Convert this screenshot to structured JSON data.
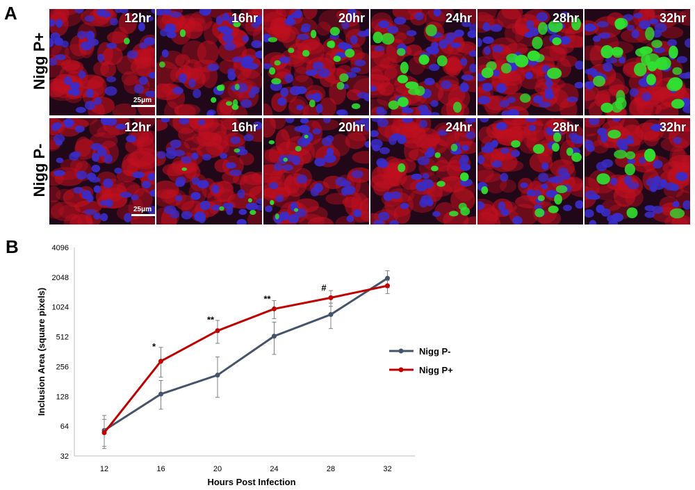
{
  "panel_a": {
    "letter": "A",
    "rows": [
      {
        "label": "Nigg P+",
        "times": [
          "12hr",
          "16hr",
          "20hr",
          "24hr",
          "28hr",
          "32hr"
        ],
        "scale_bar": "25μm"
      },
      {
        "label": "Nigg P-",
        "times": [
          "12hr",
          "16hr",
          "20hr",
          "24hr",
          "28hr",
          "32hr"
        ],
        "scale_bar": "25μm"
      }
    ],
    "colors": {
      "nucleus": "#3a2cc8",
      "cytoplasm": "#c01020",
      "inclusion": "#30e030",
      "background": "#200818"
    }
  },
  "panel_b": {
    "letter": "B"
  },
  "chart_data": {
    "type": "line",
    "title": "",
    "xlabel": "Hours Post Infection",
    "ylabel": "Inclusion Area (square pixels)",
    "x": [
      12,
      16,
      20,
      24,
      28,
      32
    ],
    "x_tick_labels": [
      "12",
      "16",
      "20",
      "24",
      "28",
      "32"
    ],
    "yscale": "log2",
    "ylim": [
      32,
      4096
    ],
    "y_ticks": [
      32,
      64,
      128,
      256,
      512,
      1024,
      2048,
      4096
    ],
    "y_tick_labels": [
      "32",
      "64",
      "128",
      "256",
      "512",
      "1024",
      "2048",
      "4096"
    ],
    "grid": false,
    "legend_position": "right",
    "series": [
      {
        "name": "Nigg P-",
        "color": "#44546a",
        "values": [
          58,
          135,
          210,
          520,
          860,
          2000
        ],
        "err_low": [
          38,
          95,
          125,
          340,
          620,
          1600
        ],
        "err_high": [
          82,
          185,
          320,
          720,
          1120,
          2380
        ]
      },
      {
        "name": "Nigg P+",
        "color": "#c00000",
        "values": [
          55,
          290,
          590,
          980,
          1270,
          1680
        ],
        "err_low": [
          40,
          200,
          440,
          780,
          1040,
          1400
        ],
        "err_high": [
          75,
          400,
          750,
          1190,
          1500,
          1900
        ]
      }
    ],
    "annotations": [
      {
        "x": 16,
        "y": 380,
        "text": "*"
      },
      {
        "x": 20,
        "y": 710,
        "text": "**"
      },
      {
        "x": 24,
        "y": 1150,
        "text": "**"
      },
      {
        "x": 28,
        "y": 1490,
        "text": "#"
      }
    ]
  }
}
